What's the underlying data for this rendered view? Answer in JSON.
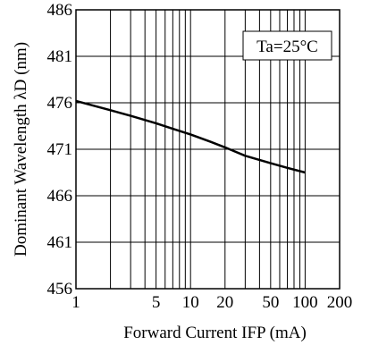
{
  "chart_data": {
    "type": "line",
    "title": "",
    "xlabel": "Forward Current IFP (mA)",
    "ylabel": "Dominant Wavelength λD (nm)",
    "x_scale": "log",
    "xlim": [
      1,
      200
    ],
    "ylim": [
      456,
      486
    ],
    "x_ticks": [
      1,
      5,
      10,
      20,
      50,
      100,
      200
    ],
    "y_ticks": [
      456,
      461,
      466,
      471,
      476,
      481,
      486
    ],
    "grid": true,
    "annotation": "Ta=25°C",
    "series": [
      {
        "x": [
          1,
          2,
          3,
          5,
          7,
          10,
          15,
          20,
          30,
          50,
          70,
          100
        ],
        "y": [
          476.2,
          475.2,
          474.6,
          473.8,
          473.2,
          472.6,
          471.8,
          471.2,
          470.3,
          469.5,
          469.0,
          468.5
        ]
      }
    ]
  },
  "colors": {
    "line": "#000000",
    "grid": "#000000",
    "background": "#ffffff"
  }
}
